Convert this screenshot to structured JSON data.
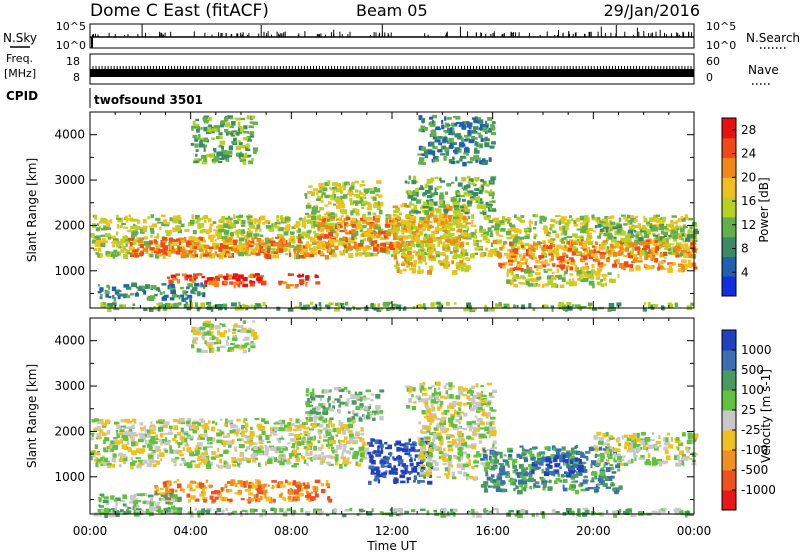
{
  "header": {
    "title": "Dome C East (fitACF)",
    "beam": "Beam 05",
    "date": "29/Jan/2016"
  },
  "top_panels": {
    "nsky_label": "N.Sky",
    "nsky_ticks": [
      "10^5",
      "10^0"
    ],
    "nsearch_label": "N.Search",
    "nsearch_ticks": [
      "10^5",
      "10^0"
    ],
    "freq_label": "Freq.",
    "freq_unit": "[MHz]",
    "freq_ticks": [
      "18",
      "8"
    ],
    "nave_label": "Nave",
    "nave_ticks": [
      "60",
      "0"
    ],
    "cpid_label": "CPID",
    "cpid_value": "twofsound 3501"
  },
  "x_axis": {
    "ticks": [
      "00:00",
      "04:00",
      "08:00",
      "12:00",
      "16:00",
      "20:00",
      "00:00"
    ],
    "label": "Time UT"
  },
  "chart_data": [
    {
      "type": "heatmap",
      "panel": "power",
      "ylabel": "Slant Range [km]",
      "yticks": [
        1000,
        2000,
        3000,
        4000
      ],
      "ylim": [
        180,
        4500
      ],
      "xlim_hours": [
        0,
        24
      ],
      "colorbar_label": "Power [dB]",
      "colorbar_ticks": [
        4,
        8,
        12,
        16,
        20,
        24,
        28
      ],
      "colorbar_range": [
        0,
        30
      ],
      "colors": [
        "#1030e0",
        "#2060b0",
        "#3a8a68",
        "#62b04a",
        "#b8d020",
        "#f0c020",
        "#f08818",
        "#f04818",
        "#e81010"
      ],
      "regions": [
        {
          "t0": 0.0,
          "t1": 24.0,
          "r0": 1350,
          "r1": 2250,
          "v": 15
        },
        {
          "t0": 1.5,
          "t1": 9.5,
          "r0": 1350,
          "r1": 1750,
          "v": 24
        },
        {
          "t0": 3.0,
          "t1": 9.0,
          "r0": 700,
          "r1": 950,
          "v": 26
        },
        {
          "t0": 0.3,
          "t1": 4.5,
          "r0": 400,
          "r1": 750,
          "v": 8
        },
        {
          "t0": 8.5,
          "t1": 11.5,
          "r0": 2200,
          "r1": 3000,
          "v": 14
        },
        {
          "t0": 9.0,
          "t1": 12.5,
          "r0": 1500,
          "r1": 2200,
          "v": 24
        },
        {
          "t0": 12.0,
          "t1": 15.0,
          "r0": 1000,
          "r1": 2500,
          "v": 18
        },
        {
          "t0": 12.5,
          "t1": 16.0,
          "r0": 2300,
          "r1": 3100,
          "v": 12
        },
        {
          "t0": 16.0,
          "t1": 24.0,
          "r0": 1050,
          "r1": 1700,
          "v": 22
        },
        {
          "t0": 16.5,
          "t1": 21.0,
          "r0": 700,
          "r1": 1050,
          "v": 16
        },
        {
          "t0": 20.0,
          "t1": 24.0,
          "r0": 1700,
          "r1": 2050,
          "v": 12
        },
        {
          "t0": 0.0,
          "t1": 24.0,
          "r0": 180,
          "r1": 320,
          "v": 10
        },
        {
          "t0": 4.0,
          "t1": 6.5,
          "r0": 3400,
          "r1": 4450,
          "v": 10
        },
        {
          "t0": 13.0,
          "t1": 16.0,
          "r0": 3400,
          "r1": 4450,
          "v": 8
        }
      ]
    },
    {
      "type": "heatmap",
      "panel": "velocity",
      "ylabel": "Slant Range [km]",
      "yticks": [
        1000,
        2000,
        3000,
        4000
      ],
      "ylim": [
        180,
        4500
      ],
      "xlim_hours": [
        0,
        24
      ],
      "colorbar_label": "Velocity [m s-1]",
      "colorbar_ticks": [
        1000,
        500,
        100,
        25,
        -25,
        -100,
        -500,
        -1000
      ],
      "colors": [
        "#2040c0",
        "#3a6eb0",
        "#4a9a60",
        "#60c040",
        "#c8c8c8",
        "#f0c020",
        "#f09020",
        "#f05020",
        "#e81818"
      ],
      "regions": [
        {
          "t0": 0.0,
          "t1": 11.0,
          "r0": 1250,
          "r1": 2300,
          "v": 4
        },
        {
          "t0": 2.5,
          "t1": 9.5,
          "r0": 500,
          "r1": 950,
          "v": 6
        },
        {
          "t0": 0.3,
          "t1": 3.5,
          "r0": 200,
          "r1": 650,
          "v": 3
        },
        {
          "t0": 8.5,
          "t1": 11.5,
          "r0": 2300,
          "r1": 3000,
          "v": 3
        },
        {
          "t0": 11.0,
          "t1": 13.5,
          "r0": 900,
          "r1": 1900,
          "v": 0
        },
        {
          "t0": 13.0,
          "t1": 16.0,
          "r0": 1000,
          "r1": 2500,
          "v": 4
        },
        {
          "t0": 15.5,
          "t1": 21.0,
          "r0": 700,
          "r1": 1700,
          "v": 2
        },
        {
          "t0": 17.5,
          "t1": 19.5,
          "r0": 1050,
          "r1": 1500,
          "v": 0
        },
        {
          "t0": 20.0,
          "t1": 24.0,
          "r0": 1300,
          "r1": 2000,
          "v": 4
        },
        {
          "t0": 0.0,
          "t1": 24.0,
          "r0": 180,
          "r1": 320,
          "v": 3
        },
        {
          "t0": 12.5,
          "t1": 16.0,
          "r0": 2500,
          "r1": 3100,
          "v": 4
        },
        {
          "t0": 4.0,
          "t1": 6.5,
          "r0": 3800,
          "r1": 4450,
          "v": 4
        }
      ]
    }
  ]
}
